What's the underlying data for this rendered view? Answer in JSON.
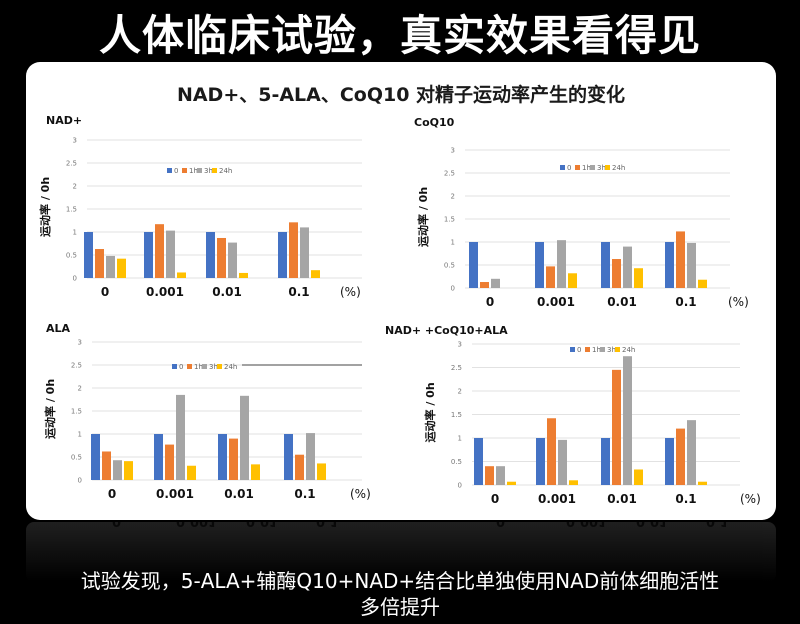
{
  "headline": "人体临床试验，真实效果看得见",
  "card_title": "NAD+、5-ALA、CoQ10 对精子运动率产生的变化",
  "caption_line1": "试验发现，5-ALA+辅酶Q10+NAD+结合比单独使用NAD前体细胞活性",
  "caption_line2": "多倍提升",
  "colors": {
    "0": "#4472C4",
    "1h": "#ED7D31",
    "3h": "#A5A5A5",
    "24h": "#FFC000"
  },
  "chart_data": [
    {
      "type": "bar",
      "title": "NAD+",
      "ylabel": "运动率 / 0h",
      "xunit": "(%)",
      "categories": [
        "0",
        "0.001",
        "0.01",
        "0.1"
      ],
      "ylim": [
        0,
        3
      ],
      "yticks": [
        "0",
        "0.5",
        "1",
        "1.5",
        "2",
        "2.5",
        "3"
      ],
      "legend": "top-center",
      "series": [
        {
          "name": "0",
          "values": [
            1.0,
            1.0,
            1.0,
            1.0
          ]
        },
        {
          "name": "1h",
          "values": [
            0.63,
            1.17,
            0.87,
            1.21
          ]
        },
        {
          "name": "3h",
          "values": [
            0.48,
            1.03,
            0.77,
            1.1
          ]
        },
        {
          "name": "24h",
          "values": [
            0.42,
            0.12,
            0.11,
            0.17
          ]
        }
      ]
    },
    {
      "type": "bar",
      "title": "CoQ10",
      "ylabel": "运动率 / 0h",
      "xunit": "(%)",
      "categories": [
        "0",
        "0.001",
        "0.01",
        "0.1"
      ],
      "ylim": [
        0,
        3
      ],
      "yticks": [
        "0",
        "0.5",
        "1",
        "1.5",
        "2",
        "2.5",
        "3"
      ],
      "legend": "top-center",
      "series": [
        {
          "name": "0",
          "values": [
            1.0,
            1.0,
            1.0,
            1.0
          ]
        },
        {
          "name": "1h",
          "values": [
            0.13,
            0.47,
            0.63,
            1.23
          ]
        },
        {
          "name": "3h",
          "values": [
            0.2,
            1.04,
            0.9,
            0.98
          ]
        },
        {
          "name": "24h",
          "values": [
            0.0,
            0.32,
            0.43,
            0.18
          ]
        }
      ]
    },
    {
      "type": "bar",
      "title": "ALA",
      "ylabel": "运动率 / 0h",
      "xunit": "(%)",
      "categories": [
        "0",
        "0.001",
        "0.01",
        "0.1"
      ],
      "ylim": [
        0,
        3
      ],
      "yticks": [
        "0",
        "0.5",
        "1",
        "1.5",
        "2",
        "2.5",
        "3"
      ],
      "legend": "top-center",
      "series": [
        {
          "name": "0",
          "values": [
            1.0,
            1.0,
            1.0,
            1.0
          ]
        },
        {
          "name": "1h",
          "values": [
            0.62,
            0.77,
            0.9,
            0.55
          ]
        },
        {
          "name": "3h",
          "values": [
            0.43,
            1.85,
            1.83,
            1.02
          ]
        },
        {
          "name": "24h",
          "values": [
            0.41,
            0.31,
            0.34,
            0.36
          ]
        }
      ]
    },
    {
      "type": "bar",
      "title": "NAD+ +CoQ10+ALA",
      "ylabel": "运动率 / 0h",
      "xunit": "(%)",
      "categories": [
        "0",
        "0.001",
        "0.01",
        "0.1"
      ],
      "ylim": [
        0,
        3
      ],
      "yticks": [
        "0",
        "0.5",
        "1",
        "1.5",
        "2",
        "2.5",
        "3"
      ],
      "legend": "top-center",
      "series": [
        {
          "name": "0",
          "values": [
            1.0,
            1.0,
            1.0,
            1.0
          ]
        },
        {
          "name": "1h",
          "values": [
            0.4,
            1.42,
            2.45,
            1.2
          ]
        },
        {
          "name": "3h",
          "values": [
            0.4,
            0.96,
            2.74,
            1.38
          ]
        },
        {
          "name": "24h",
          "values": [
            0.07,
            0.1,
            0.33,
            0.07
          ]
        }
      ]
    }
  ]
}
